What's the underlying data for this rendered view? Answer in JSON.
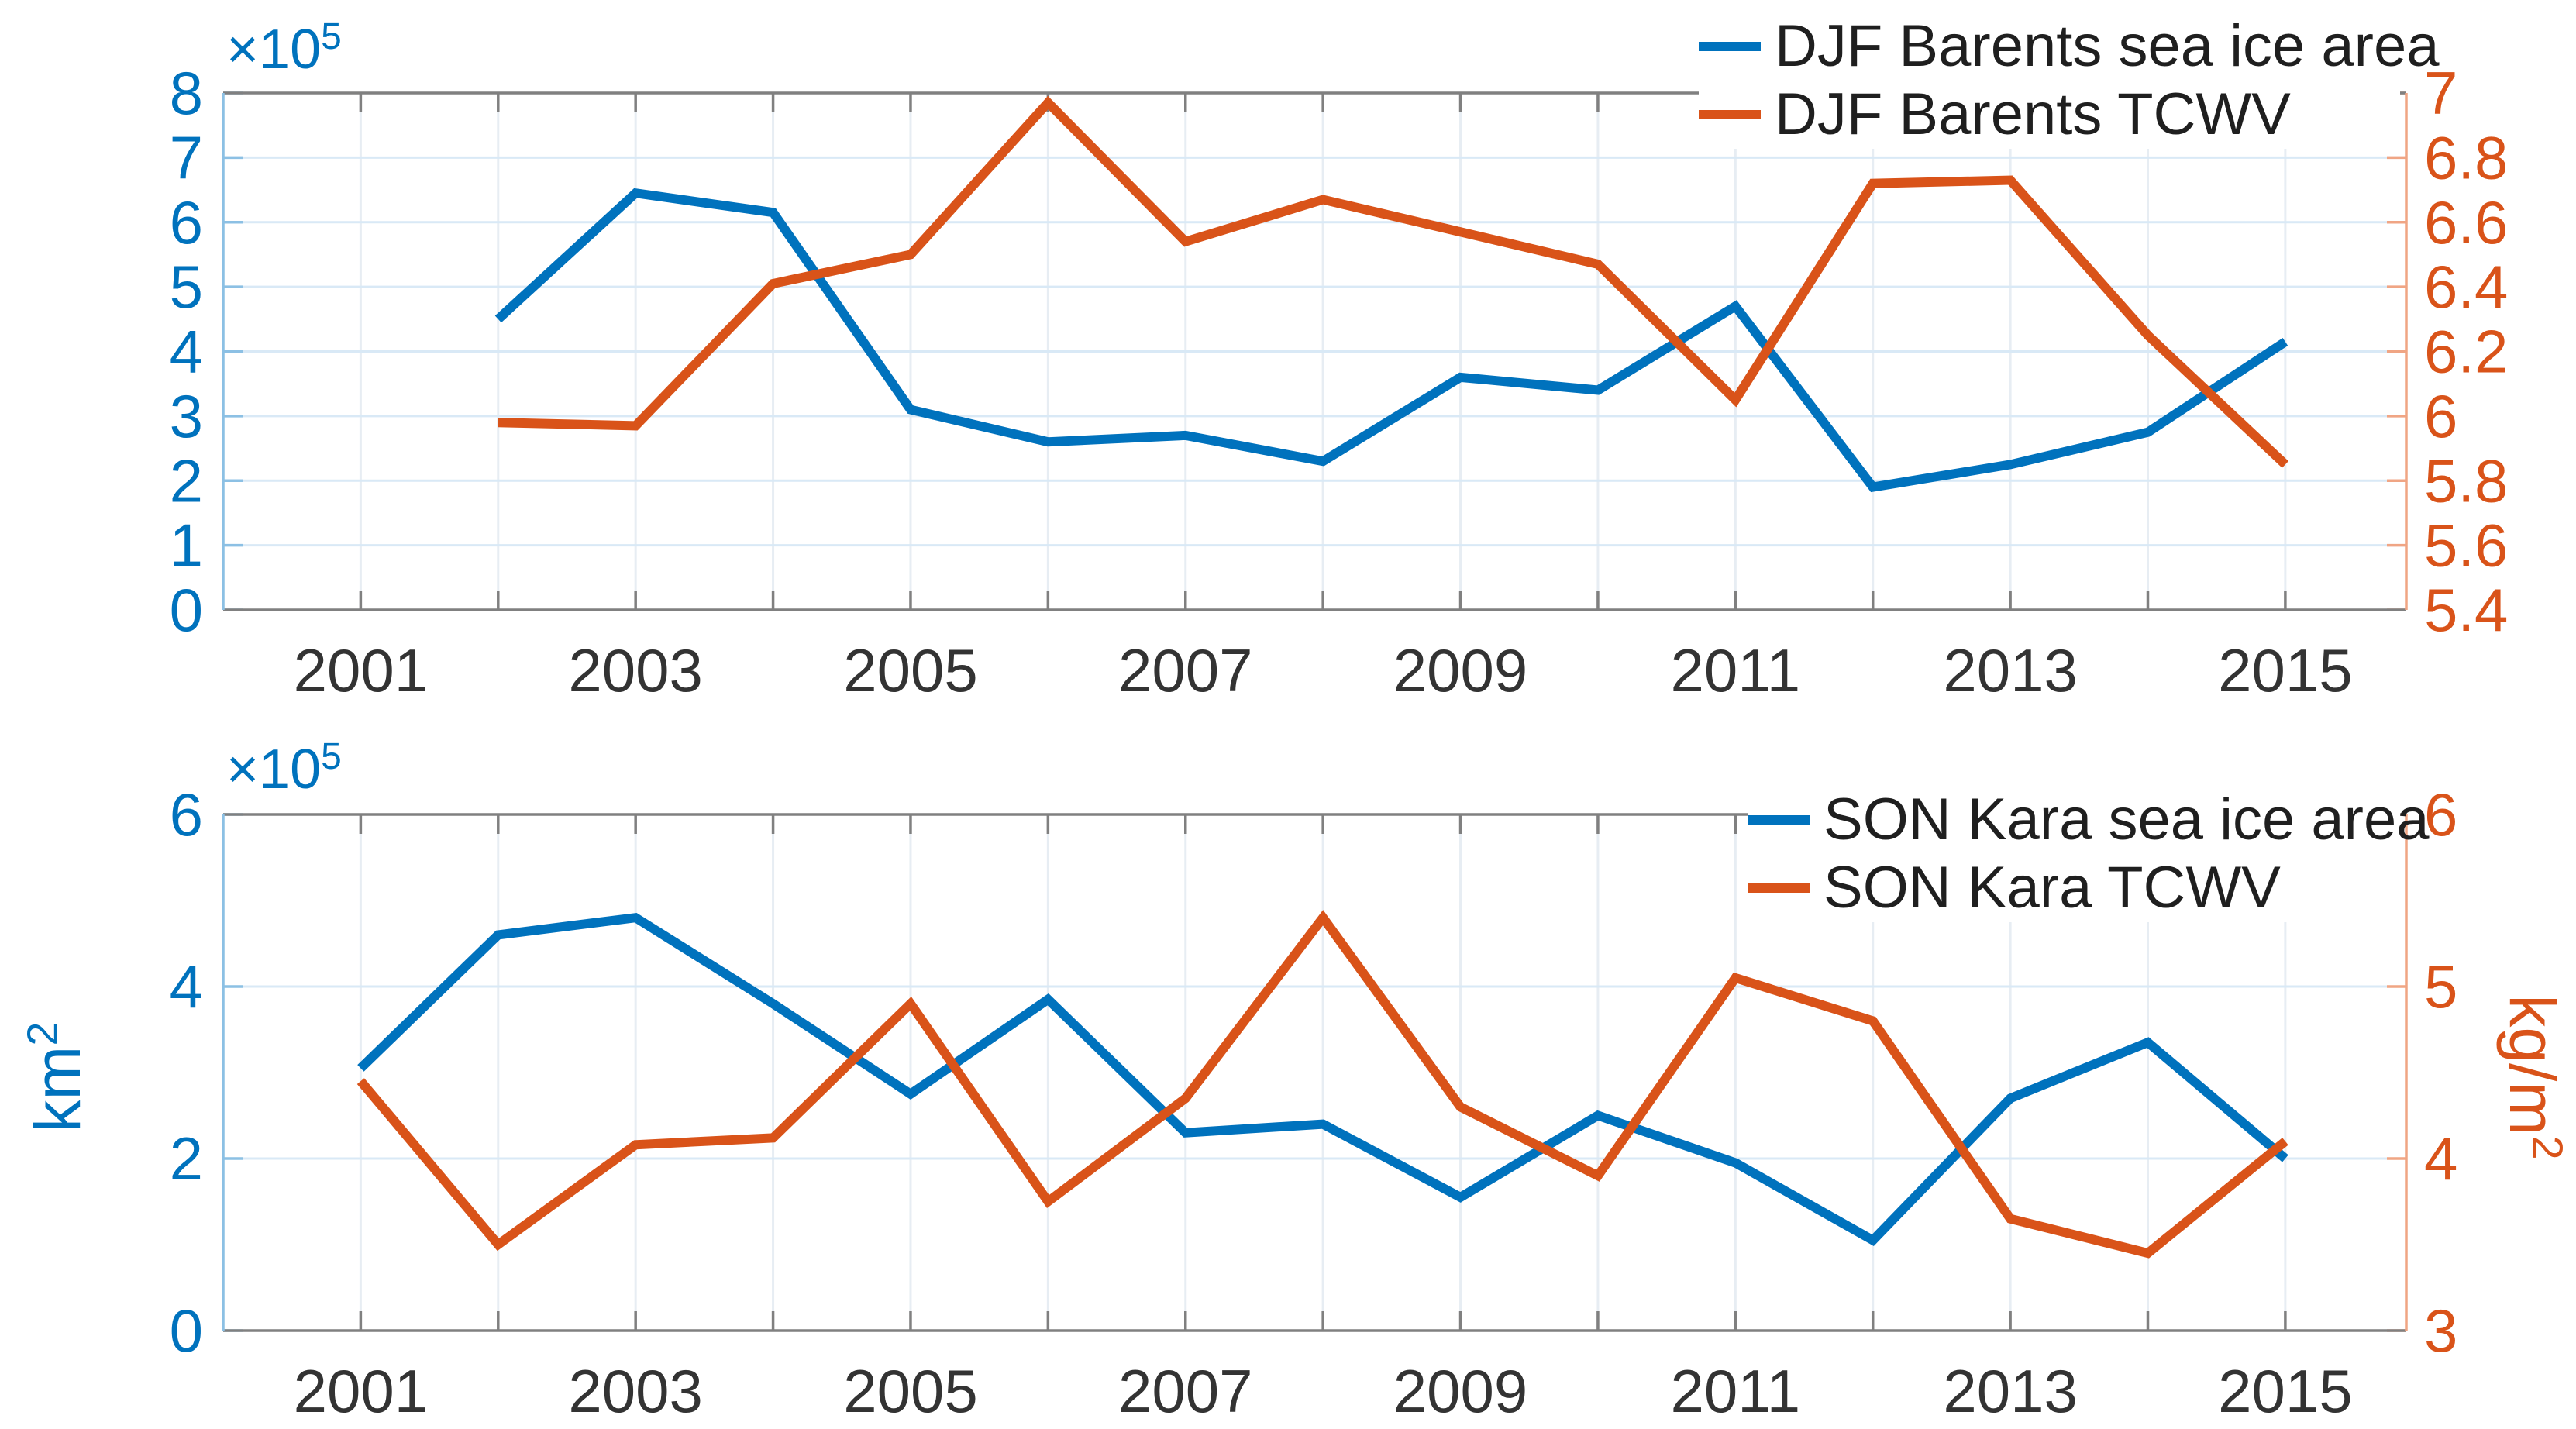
{
  "colors": {
    "blue": "#0072BD",
    "orange": "#D95319",
    "grid_horizontal": "#d9e9f6",
    "grid_vertical": "#e7edf3",
    "axis_gray": "#808080",
    "x_tick_text": "#333333",
    "left_spine": "#8CC0E4",
    "right_spine": "#F0A584"
  },
  "chart_data": [
    {
      "type": "line",
      "panel": "top",
      "x": [
        2002,
        2003,
        2004,
        2005,
        2006,
        2007,
        2008,
        2009,
        2010,
        2011,
        2012,
        2013,
        2014,
        2015
      ],
      "series": [
        {
          "name": "DJF Barents sea ice area",
          "axis": "left",
          "color": "#0072BD",
          "values": [
            4.5,
            6.45,
            6.15,
            3.1,
            2.6,
            2.7,
            2.3,
            3.6,
            3.4,
            4.7,
            1.9,
            2.25,
            2.75,
            4.15
          ]
        },
        {
          "name": "DJF Barents TCWV",
          "axis": "right",
          "color": "#D95319",
          "values": [
            5.98,
            5.97,
            6.41,
            6.5,
            6.97,
            6.54,
            6.67,
            6.57,
            6.47,
            6.05,
            6.72,
            6.73,
            6.25,
            5.85
          ]
        }
      ],
      "x_axis": {
        "range": [
          2000,
          2015.88
        ],
        "ticks": [
          2001,
          2002,
          2003,
          2004,
          2005,
          2006,
          2007,
          2008,
          2009,
          2010,
          2011,
          2012,
          2013,
          2014,
          2015
        ],
        "labeled_ticks": [
          2001,
          2003,
          2005,
          2007,
          2009,
          2011,
          2013,
          2015
        ]
      },
      "left_axis": {
        "range": [
          0,
          8
        ],
        "ticks": [
          0,
          1,
          2,
          3,
          4,
          5,
          6,
          7,
          8
        ],
        "labels": [
          "0",
          "1",
          "2",
          "3",
          "4",
          "5",
          "6",
          "7",
          "8"
        ],
        "exponent": {
          "base": "×10",
          "power": "5"
        }
      },
      "right_axis": {
        "range": [
          5.4,
          7
        ],
        "ticks": [
          5.4,
          5.6,
          5.8,
          6,
          6.2,
          6.4,
          6.6,
          6.8,
          7
        ],
        "labels": [
          "5.4",
          "5.6",
          "5.8",
          "6",
          "6.2",
          "6.4",
          "6.6",
          "6.8",
          "7"
        ]
      },
      "grid": {
        "horizontal": true,
        "vertical": true
      },
      "legend": {
        "position": "top-right"
      }
    },
    {
      "type": "line",
      "panel": "bottom",
      "x": [
        2001,
        2002,
        2003,
        2004,
        2005,
        2006,
        2007,
        2008,
        2009,
        2010,
        2011,
        2012,
        2013,
        2014,
        2015
      ],
      "series": [
        {
          "name": "SON Kara sea ice area",
          "axis": "left",
          "color": "#0072BD",
          "values": [
            3.05,
            4.6,
            4.8,
            3.8,
            2.75,
            3.85,
            2.3,
            2.4,
            1.55,
            2.5,
            1.95,
            1.05,
            2.7,
            3.35,
            2.0
          ]
        },
        {
          "name": "SON Kara TCWV",
          "axis": "right",
          "color": "#D95319",
          "values": [
            4.45,
            3.5,
            4.08,
            4.12,
            4.9,
            3.75,
            4.35,
            5.4,
            4.3,
            3.9,
            5.05,
            4.8,
            3.65,
            3.45,
            4.1
          ]
        }
      ],
      "x_axis": {
        "range": [
          2000,
          2015.88
        ],
        "ticks": [
          2001,
          2002,
          2003,
          2004,
          2005,
          2006,
          2007,
          2008,
          2009,
          2010,
          2011,
          2012,
          2013,
          2014,
          2015
        ],
        "labeled_ticks": [
          2001,
          2003,
          2005,
          2007,
          2009,
          2011,
          2013,
          2015
        ]
      },
      "left_axis": {
        "range": [
          0,
          6
        ],
        "ticks": [
          0,
          2,
          4,
          6
        ],
        "labels": [
          "0",
          "2",
          "4",
          "6"
        ],
        "exponent": {
          "base": "×10",
          "power": "5"
        }
      },
      "right_axis": {
        "range": [
          3,
          6
        ],
        "ticks": [
          3,
          4,
          5,
          6
        ],
        "labels": [
          "3",
          "4",
          "5",
          "6"
        ]
      },
      "ylabel_left": {
        "base": "km",
        "power": "2"
      },
      "ylabel_right": {
        "base": "kg/m",
        "power": "2"
      },
      "grid": {
        "horizontal": true,
        "vertical": true
      },
      "legend": {
        "position": "top-right"
      }
    }
  ]
}
